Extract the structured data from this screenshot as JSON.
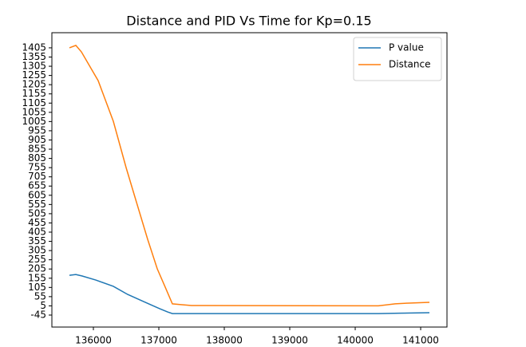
{
  "chart_data": {
    "type": "line",
    "title": "Distance and PID Vs Time for Kp=0.15",
    "series": [
      {
        "name": "P value",
        "color": "#1f77b4",
        "x": [
          135634,
          135732,
          135829,
          136037,
          136305,
          136524,
          136768,
          137012,
          137134,
          137207,
          140354,
          140671,
          141134
        ],
        "values": [
          171,
          175,
          167,
          145,
          111,
          67,
          28,
          -10,
          -28,
          -37,
          -37,
          -35,
          -32
        ]
      },
      {
        "name": "Distance",
        "color": "#ff7f0e",
        "x": [
          135634,
          135732,
          135817,
          136073,
          136305,
          136500,
          136646,
          136829,
          136976,
          137098,
          137207,
          137354,
          137500,
          140354,
          140610,
          140817,
          141134
        ],
        "values": [
          1405,
          1418,
          1383,
          1227,
          1006,
          755,
          582,
          366,
          206,
          106,
          16,
          11,
          7,
          5,
          16,
          20,
          24
        ]
      }
    ],
    "xlim": [
      135366,
      141402
    ],
    "ylim": [
      -110,
      1487
    ],
    "xticks": [
      136000,
      137000,
      138000,
      139000,
      140000,
      141000
    ],
    "yticks": [
      -45,
      5,
      55,
      105,
      155,
      205,
      255,
      305,
      355,
      405,
      455,
      505,
      555,
      605,
      655,
      705,
      755,
      805,
      855,
      905,
      955,
      1005,
      1055,
      1105,
      1155,
      1205,
      1255,
      1305,
      1355,
      1405
    ],
    "legend": "upper right"
  }
}
